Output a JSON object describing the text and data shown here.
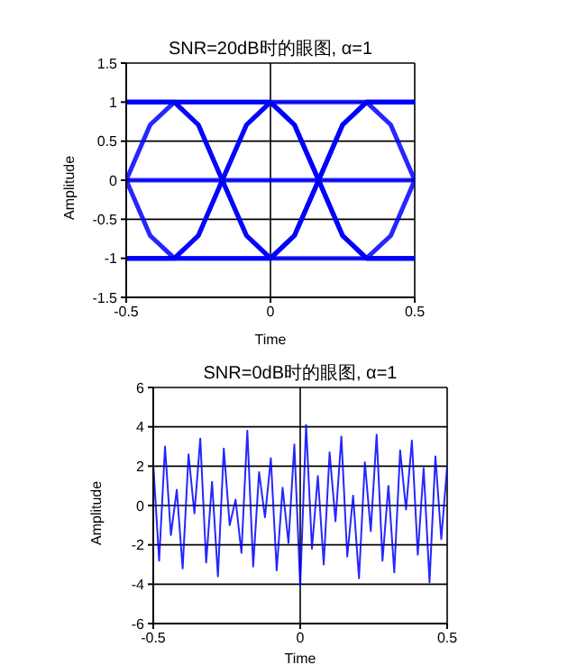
{
  "chart_data": [
    {
      "type": "line",
      "title": "SNR=20dB时的眼图, α=1",
      "xlabel": "Time",
      "ylabel": "Amplitude",
      "x": [
        -0.5,
        -0.417,
        -0.333,
        -0.25,
        -0.167,
        -0.083,
        0,
        0.083,
        0.167,
        0.25,
        0.333,
        0.417,
        0.5
      ],
      "series": [
        {
          "color": "#0000ff",
          "values": [
            1,
            1,
            1,
            1,
            1,
            1,
            1,
            1,
            1,
            1,
            1,
            1,
            1
          ]
        },
        {
          "color": "#0000ff",
          "values": [
            -1,
            -1,
            -1,
            -1,
            -1,
            -1,
            -1,
            -1,
            -1,
            -1,
            -1,
            -1,
            -1
          ]
        },
        {
          "color": "#0000ff",
          "values": [
            1,
            1,
            1,
            0.71,
            0,
            -0.71,
            -1,
            -0.71,
            0,
            0.71,
            1,
            0.71,
            0
          ]
        },
        {
          "color": "#0000ff",
          "values": [
            -1,
            -1,
            -1,
            -0.71,
            0,
            0.71,
            1,
            0.71,
            0,
            -0.71,
            -1,
            -0.71,
            0
          ]
        },
        {
          "color": "#0000ff",
          "values": [
            1,
            1,
            1,
            1,
            1,
            1,
            1,
            0.71,
            0,
            -0.71,
            -1,
            -1,
            -1
          ]
        },
        {
          "color": "#0000ff",
          "values": [
            -1,
            -1,
            -1,
            -1,
            -1,
            -1,
            -1,
            -0.71,
            0,
            0.71,
            1,
            1,
            1
          ]
        },
        {
          "color": "#0000ff",
          "values": [
            0,
            0.71,
            1,
            0.71,
            0,
            -0.71,
            -1,
            -0.71,
            0,
            0.71,
            1,
            1,
            1
          ]
        },
        {
          "color": "#0000ff",
          "values": [
            0,
            -0.71,
            -1,
            -0.71,
            0,
            0.71,
            1,
            0.71,
            0,
            -0.71,
            -1,
            -1,
            -1
          ]
        },
        {
          "color": "#0000ff",
          "values": [
            0,
            0,
            0,
            0,
            0,
            0,
            0,
            0,
            0,
            0,
            0,
            0,
            0
          ]
        }
      ],
      "xlim": [
        -0.5,
        0.5
      ],
      "xticks": [
        -0.5,
        0,
        0.5
      ],
      "ylim": [
        -1.5,
        1.5
      ],
      "yticks": [
        -1.5,
        -1,
        -0.5,
        0,
        0.5,
        1,
        1.5
      ],
      "grid": true
    },
    {
      "type": "line",
      "title": "SNR=0dB时的眼图, α=1",
      "xlabel": "Time",
      "ylabel": "Amplitude",
      "x": [
        -0.5,
        -0.48,
        -0.46,
        -0.44,
        -0.42,
        -0.4,
        -0.38,
        -0.36,
        -0.34,
        -0.32,
        -0.3,
        -0.28,
        -0.26,
        -0.24,
        -0.22,
        -0.2,
        -0.18,
        -0.16,
        -0.14,
        -0.12,
        -0.1,
        -0.08,
        -0.06,
        -0.04,
        -0.02,
        0,
        0.02,
        0.04,
        0.06,
        0.08,
        0.1,
        0.12,
        0.14,
        0.16,
        0.18,
        0.2,
        0.22,
        0.24,
        0.26,
        0.28,
        0.3,
        0.32,
        0.34,
        0.36,
        0.38,
        0.4,
        0.42,
        0.44,
        0.46,
        0.48,
        0.5
      ],
      "series": [
        {
          "color": "#0000ff",
          "values": [
            2.1,
            -2.8,
            3.0,
            -1.5,
            0.8,
            -3.2,
            2.6,
            -0.4,
            3.4,
            -2.9,
            1.2,
            -3.6,
            2.9,
            -1.0,
            0.3,
            -2.4,
            3.8,
            -3.1,
            1.7,
            -0.6,
            2.4,
            -3.3,
            0.9,
            -1.9,
            3.1,
            -4.1,
            4.1,
            -2.2,
            1.5,
            -3.0,
            2.7,
            -0.8,
            3.5,
            -2.6,
            0.5,
            -3.7,
            2.2,
            -1.3,
            3.6,
            -2.8,
            1.0,
            -3.4,
            2.8,
            -0.2,
            3.3,
            -2.5,
            1.9,
            -3.9,
            2.5,
            -1.7,
            2.0
          ]
        }
      ],
      "xlim": [
        -0.5,
        0.5
      ],
      "xticks": [
        -0.5,
        0,
        0.5
      ],
      "ylim": [
        -6,
        6
      ],
      "yticks": [
        -6,
        -4,
        -2,
        0,
        2,
        4,
        6
      ],
      "grid": true
    }
  ]
}
